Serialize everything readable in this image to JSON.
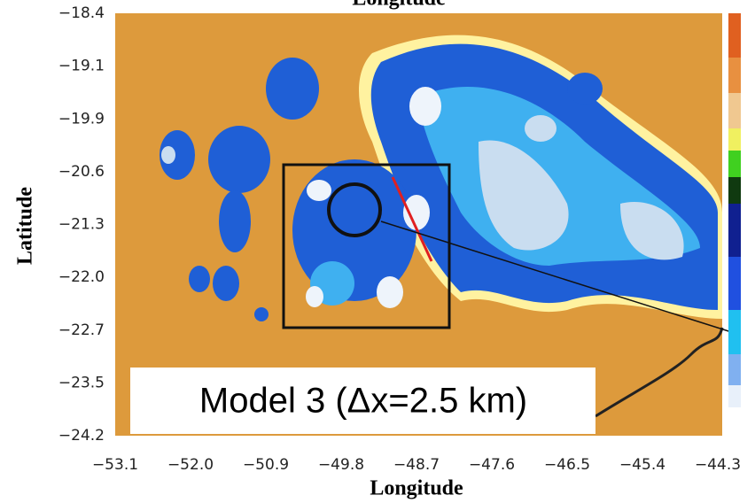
{
  "top_label": "Longitude",
  "x_axis": {
    "label": "Longitude",
    "ticks": [
      "−53.1",
      "−52.0",
      "−50.9",
      "−49.8",
      "−48.7",
      "−47.6",
      "−46.5",
      "−45.4",
      "−44.3"
    ]
  },
  "y_axis": {
    "label": "Latitude",
    "ticks": [
      "−18.4",
      "−19.1",
      "−19.9",
      "−20.6",
      "−21.3",
      "−22.0",
      "−22.7",
      "−23.5",
      "−24.2"
    ]
  },
  "annotation": "Model 3 (Δx=2.5 km)"
}
